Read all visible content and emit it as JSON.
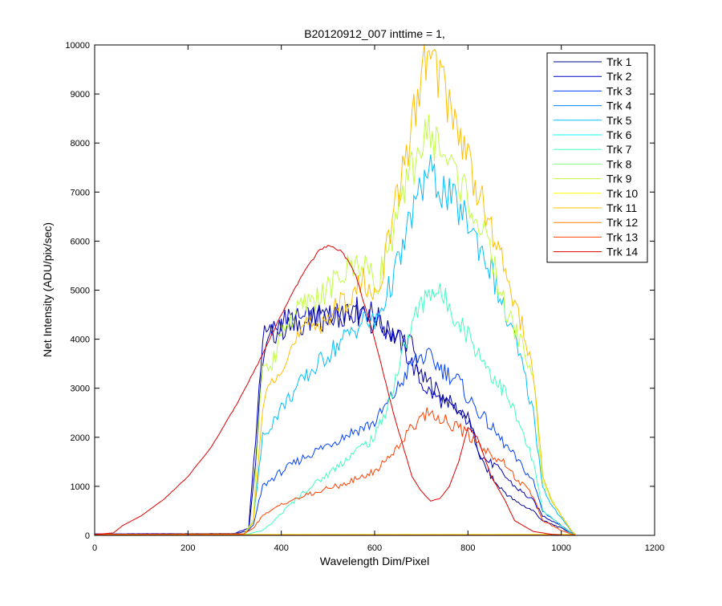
{
  "chart_data": {
    "type": "line",
    "title": "B20120912_007 inttime = 1,",
    "xlabel": "Wavelength Dim/Pixel",
    "ylabel": "Net Intensity (ADU/pix/sec)",
    "xlim": [
      0,
      1200
    ],
    "ylim": [
      0,
      10000
    ],
    "xticks": [
      0,
      200,
      400,
      600,
      800,
      1000,
      1200
    ],
    "yticks": [
      0,
      1000,
      2000,
      3000,
      4000,
      5000,
      6000,
      7000,
      8000,
      9000,
      10000
    ],
    "grid": false,
    "legend_position": "top-right",
    "series": [
      {
        "name": "Trk 1",
        "color": "#00008f",
        "x": [
          0,
          300,
          330,
          345,
          360,
          380,
          400,
          450,
          500,
          550,
          600,
          620,
          640,
          680,
          700,
          720,
          750,
          800,
          830,
          860,
          900,
          940,
          960,
          1000,
          1020,
          1030
        ],
        "y": [
          20,
          30,
          100,
          1500,
          3600,
          4100,
          4200,
          4350,
          4450,
          4550,
          4350,
          4200,
          4150,
          3900,
          3200,
          3100,
          2800,
          2400,
          1500,
          1050,
          700,
          500,
          300,
          150,
          50,
          20
        ]
      },
      {
        "name": "Trk 2",
        "color": "#0000bf",
        "x": [
          0,
          300,
          330,
          345,
          360,
          380,
          400,
          450,
          500,
          550,
          570,
          600,
          620,
          650,
          680,
          700,
          720,
          750,
          800,
          830,
          860,
          900,
          940,
          960,
          1000,
          1020,
          1030
        ],
        "y": [
          30,
          40,
          150,
          2000,
          4050,
          4150,
          4400,
          4400,
          4500,
          4550,
          4650,
          4500,
          4250,
          4000,
          3500,
          3100,
          2900,
          2700,
          2350,
          1600,
          1400,
          1000,
          700,
          400,
          200,
          60,
          20
        ]
      },
      {
        "name": "Trk 3",
        "color": "#0040ff",
        "x": [
          0,
          320,
          340,
          360,
          380,
          400,
          450,
          500,
          550,
          600,
          650,
          680,
          700,
          720,
          750,
          780,
          800,
          850,
          900,
          940,
          960,
          1000,
          1020,
          1030
        ],
        "y": [
          20,
          30,
          200,
          1000,
          1150,
          1300,
          1600,
          1850,
          2100,
          2300,
          3000,
          3500,
          3650,
          3600,
          3350,
          3150,
          2800,
          2200,
          1600,
          1100,
          500,
          200,
          50,
          20
        ]
      },
      {
        "name": "Trk 4",
        "color": "#0080ff",
        "x": [
          0,
          1030
        ],
        "y": [
          8,
          8
        ]
      },
      {
        "name": "Trk 5",
        "color": "#00bfff",
        "x": [
          0,
          320,
          340,
          360,
          380,
          400,
          450,
          500,
          550,
          580,
          600,
          630,
          660,
          680,
          700,
          710,
          720,
          740,
          760,
          800,
          850,
          880,
          900,
          920,
          940,
          960,
          980,
          1000,
          1020,
          1030
        ],
        "y": [
          20,
          30,
          300,
          2000,
          2300,
          2600,
          3200,
          3700,
          4150,
          4400,
          4300,
          5000,
          5800,
          6600,
          7000,
          7400,
          7350,
          7100,
          6900,
          6400,
          5400,
          4500,
          4000,
          3300,
          2500,
          1000,
          600,
          350,
          100,
          20
        ]
      },
      {
        "name": "Trk 6",
        "color": "#00ffff",
        "x": [
          0,
          1030
        ],
        "y": [
          6,
          6
        ]
      },
      {
        "name": "Trk 7",
        "color": "#40ffbf",
        "x": [
          0,
          330,
          360,
          380,
          400,
          450,
          500,
          550,
          600,
          630,
          660,
          680,
          700,
          720,
          740,
          760,
          800,
          850,
          880,
          900,
          940,
          960,
          1000,
          1020,
          1030
        ],
        "y": [
          20,
          30,
          100,
          250,
          450,
          900,
          1250,
          1650,
          2000,
          2700,
          3700,
          4300,
          4700,
          5050,
          4900,
          4700,
          4100,
          3300,
          2900,
          2500,
          1500,
          500,
          200,
          50,
          20
        ]
      },
      {
        "name": "Trk 8",
        "color": "#80ff80",
        "x": [
          0,
          1030
        ],
        "y": [
          14,
          14
        ]
      },
      {
        "name": "Trk 9",
        "color": "#bfff40",
        "x": [
          0,
          320,
          340,
          355,
          360,
          380,
          400,
          450,
          500,
          550,
          580,
          600,
          630,
          660,
          680,
          700,
          720,
          740,
          760,
          800,
          850,
          880,
          900,
          920,
          940,
          960,
          980,
          1000,
          1020,
          1030
        ],
        "y": [
          20,
          30,
          300,
          3000,
          3300,
          3400,
          4200,
          4700,
          5000,
          5500,
          5600,
          5000,
          5900,
          6800,
          7500,
          8000,
          8200,
          7900,
          7600,
          6900,
          5700,
          4600,
          4200,
          3800,
          3200,
          1100,
          700,
          400,
          120,
          20
        ]
      },
      {
        "name": "Trk 10",
        "color": "#ffff00",
        "x": [
          0,
          1030
        ],
        "y": [
          18,
          18
        ]
      },
      {
        "name": "Trk 11",
        "color": "#ffbf00",
        "x": [
          0,
          320,
          340,
          355,
          360,
          380,
          400,
          450,
          500,
          550,
          580,
          600,
          630,
          660,
          680,
          700,
          710,
          720,
          740,
          760,
          800,
          850,
          880,
          900,
          920,
          940,
          960,
          980,
          1000,
          1020,
          1030
        ],
        "y": [
          20,
          30,
          250,
          2000,
          2600,
          3200,
          3500,
          4200,
          4450,
          4900,
          5200,
          4800,
          6000,
          7400,
          8400,
          9200,
          9800,
          9600,
          9400,
          8800,
          7700,
          6200,
          5400,
          4800,
          4100,
          3300,
          1200,
          700,
          400,
          120,
          20
        ]
      },
      {
        "name": "Trk 12",
        "color": "#ff8000",
        "x": [
          0,
          1030
        ],
        "y": [
          10,
          10
        ]
      },
      {
        "name": "Trk 13",
        "color": "#ff4000",
        "x": [
          0,
          320,
          340,
          360,
          380,
          400,
          450,
          500,
          550,
          600,
          640,
          680,
          700,
          720,
          740,
          760,
          800,
          850,
          880,
          900,
          940,
          960,
          1000,
          1020,
          1030
        ],
        "y": [
          20,
          30,
          150,
          400,
          500,
          650,
          800,
          950,
          1100,
          1300,
          1700,
          2200,
          2450,
          2500,
          2400,
          2300,
          2050,
          1650,
          1450,
          1200,
          800,
          300,
          100,
          30,
          10
        ]
      },
      {
        "name": "Trk 14",
        "color": "#df0000",
        "x": [
          0,
          40,
          60,
          100,
          150,
          200,
          250,
          300,
          350,
          400,
          450,
          480,
          500,
          530,
          560,
          600,
          640,
          680,
          700,
          720,
          740,
          760,
          780,
          800,
          820,
          850,
          880,
          900,
          940,
          980,
          1000
        ],
        "y": [
          20,
          50,
          200,
          400,
          750,
          1200,
          1800,
          2600,
          3500,
          4500,
          5400,
          5800,
          5900,
          5800,
          5300,
          4000,
          2500,
          1200,
          900,
          700,
          750,
          1000,
          1500,
          2200,
          2000,
          1200,
          700,
          300,
          80,
          20,
          10
        ]
      }
    ]
  }
}
